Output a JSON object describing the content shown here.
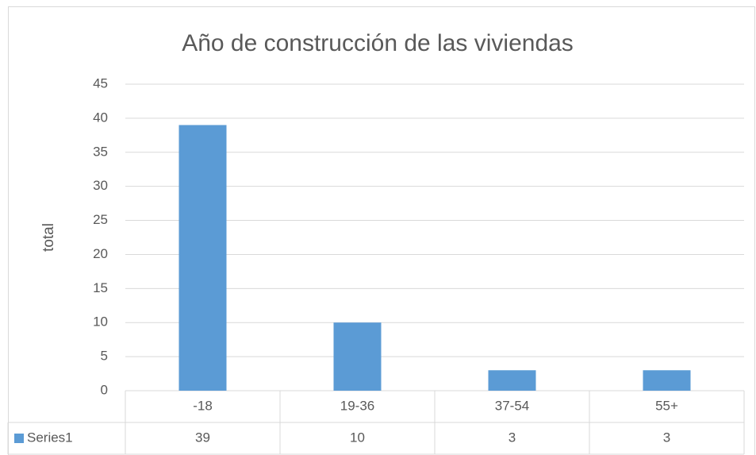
{
  "chart_data": {
    "type": "bar",
    "title": "Año de construcción de las viviendas",
    "ylabel": "total",
    "categories": [
      "-18",
      "19-36",
      "37-54",
      "55+"
    ],
    "series": [
      {
        "name": "Series1",
        "color": "#5b9bd5",
        "values": [
          39,
          10,
          3,
          3
        ]
      }
    ],
    "ylim": [
      0,
      45
    ],
    "yticks": [
      0,
      5,
      10,
      15,
      20,
      25,
      30,
      35,
      40,
      45
    ],
    "grid": true,
    "data_table": true
  }
}
